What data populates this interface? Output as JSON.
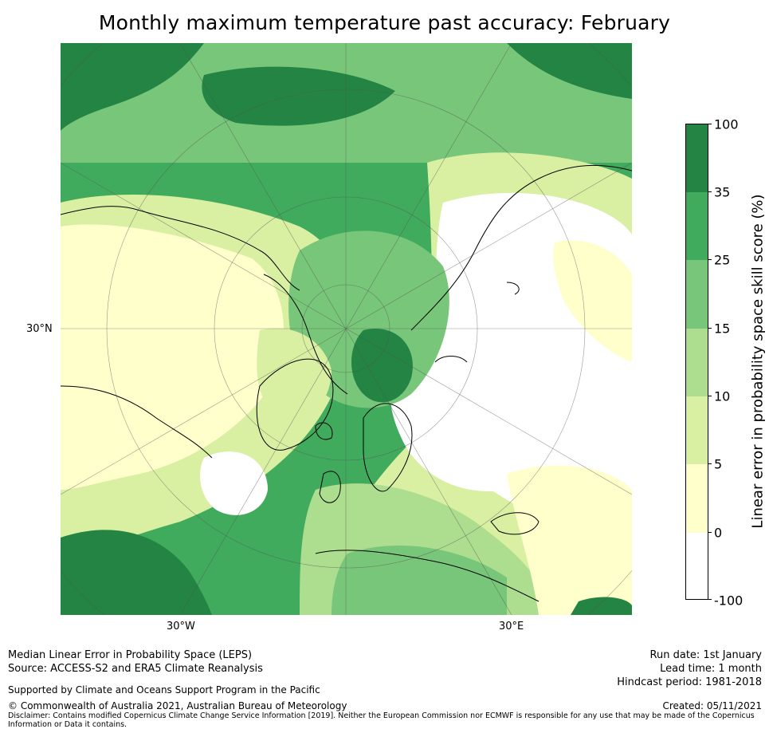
{
  "title": "Monthly maximum temperature past accuracy: February",
  "map": {
    "projection": "north-polar-stereographic",
    "labels": {
      "lat_left": "30°N",
      "lon_bottom_left": "30°W",
      "lon_bottom_right": "30°E"
    },
    "palette": {
      "lt0": "#ffffff",
      "c0_5": "#ffffcc",
      "c5_10": "#d9f0a3",
      "c10_15": "#addd8e",
      "c15_25": "#78c679",
      "c25_35": "#41ab5d",
      "c35_100": "#238443"
    }
  },
  "colorbar": {
    "label": "Linear error in probability space skill score (%)",
    "ticks": [
      "100",
      "35",
      "25",
      "15",
      "10",
      "5",
      "0",
      "-100"
    ],
    "colors": [
      "#238443",
      "#41ab5d",
      "#78c679",
      "#addd8e",
      "#d9f0a3",
      "#ffffcc",
      "#ffffff"
    ]
  },
  "footer": {
    "left_line1": "Median Linear Error in Probability Space (LEPS)",
    "left_line2": "Source: ACCESS-S2 and ERA5 Climate Reanalysis",
    "support": "Supported by Climate and Oceans Support Program in the Pacific",
    "copyright": "© Commonwealth of Australia 2021, Australian Bureau of Meteorology",
    "disclaimer_line1": "Disclaimer: Contains modified Copernicus Climate Change Service Information [2019]. Neither the European Commission nor ECMWF is responsible for any use that may be made of the Copernicus",
    "disclaimer_line2": "Information or Data it contains.",
    "run_date": "Run date: 1st January",
    "lead_time": "Lead time: 1 month",
    "hindcast": "Hindcast period: 1981-2018",
    "created": "Created: 05/11/2021"
  }
}
